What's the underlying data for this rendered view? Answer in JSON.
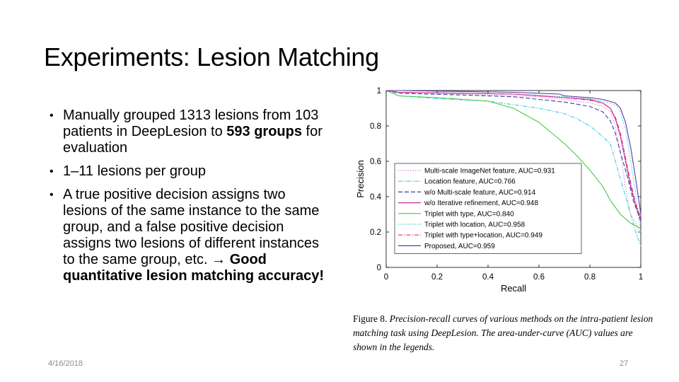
{
  "slide": {
    "title": "Experiments: Lesion Matching",
    "bullet1": {
      "text": "Manually grouped 1313 lesions from 103 patients in DeepLesion to ",
      "bold": "593 groups",
      "tail": " for evaluation"
    },
    "bullet2": {
      "text": "1–11 lesions per group"
    },
    "bullet3": {
      "text": "A true positive decision assigns two lesions of the same instance to the same group, and a false positive decision assigns two lesions of different instances to the same group, etc. →  ",
      "bold": "Good quantitative lesion matching accuracy!"
    },
    "date": "4/16/2018",
    "page_number": "27"
  },
  "caption": {
    "label": "Figure 8.",
    "text": "Precision-recall curves of various methods on the intra-patient lesion matching task using DeepLesion. The area-under-curve (AUC) values are shown in the legends."
  },
  "chart_data": {
    "type": "line",
    "xlabel": "Recall",
    "ylabel": "Precision",
    "xlim": [
      0,
      1
    ],
    "ylim": [
      0,
      1
    ],
    "xticks": [
      "0",
      "0.2",
      "0.4",
      "0.6",
      "0.8",
      "1"
    ],
    "yticks": [
      "0",
      "0.2",
      "0.4",
      "0.6",
      "0.8",
      "1"
    ],
    "grid": false,
    "legend_position": "lower-left",
    "series": [
      {
        "name": "Multi-scale ImageNet feature, AUC=0.931",
        "color": "#d96ad9",
        "dash": "dotted",
        "points": [
          [
            0,
            1
          ],
          [
            0.05,
            0.99
          ],
          [
            0.2,
            0.985
          ],
          [
            0.4,
            0.975
          ],
          [
            0.6,
            0.965
          ],
          [
            0.7,
            0.95
          ],
          [
            0.8,
            0.93
          ],
          [
            0.85,
            0.91
          ],
          [
            0.88,
            0.88
          ],
          [
            0.9,
            0.8
          ],
          [
            0.92,
            0.65
          ],
          [
            0.94,
            0.45
          ],
          [
            0.96,
            0.3
          ],
          [
            0.98,
            0.25
          ],
          [
            1,
            0.2
          ]
        ]
      },
      {
        "name": "Location feature, AUC=0.766",
        "color": "#40c8e0",
        "dash": "dashdot",
        "points": [
          [
            0,
            1
          ],
          [
            0.05,
            0.97
          ],
          [
            0.2,
            0.955
          ],
          [
            0.4,
            0.94
          ],
          [
            0.5,
            0.92
          ],
          [
            0.6,
            0.9
          ],
          [
            0.7,
            0.87
          ],
          [
            0.75,
            0.84
          ],
          [
            0.8,
            0.8
          ],
          [
            0.85,
            0.74
          ],
          [
            0.88,
            0.7
          ],
          [
            0.9,
            0.6
          ],
          [
            0.92,
            0.5
          ],
          [
            0.95,
            0.35
          ],
          [
            0.98,
            0.2
          ],
          [
            1,
            0.12
          ]
        ]
      },
      {
        "name": "w/o Multi-scale feature, AUC=0.914",
        "color": "#3c3c9e",
        "dash": "dashed",
        "points": [
          [
            0,
            1
          ],
          [
            0.05,
            0.985
          ],
          [
            0.3,
            0.975
          ],
          [
            0.5,
            0.965
          ],
          [
            0.6,
            0.95
          ],
          [
            0.7,
            0.935
          ],
          [
            0.8,
            0.91
          ],
          [
            0.85,
            0.88
          ],
          [
            0.88,
            0.83
          ],
          [
            0.9,
            0.76
          ],
          [
            0.92,
            0.65
          ],
          [
            0.95,
            0.5
          ],
          [
            0.97,
            0.38
          ],
          [
            0.99,
            0.3
          ],
          [
            1,
            0.26
          ]
        ]
      },
      {
        "name": "w/o Iterative refinement, AUC=0.948",
        "color": "#c0309a",
        "dash": "solid",
        "points": [
          [
            0,
            1
          ],
          [
            0.05,
            0.99
          ],
          [
            0.3,
            0.985
          ],
          [
            0.5,
            0.98
          ],
          [
            0.6,
            0.97
          ],
          [
            0.7,
            0.96
          ],
          [
            0.8,
            0.95
          ],
          [
            0.85,
            0.93
          ],
          [
            0.88,
            0.9
          ],
          [
            0.9,
            0.84
          ],
          [
            0.92,
            0.74
          ],
          [
            0.94,
            0.6
          ],
          [
            0.96,
            0.46
          ],
          [
            0.98,
            0.35
          ],
          [
            1,
            0.27
          ]
        ]
      },
      {
        "name": "Triplet with type, AUC=0.840",
        "color": "#44cc44",
        "dash": "solid",
        "points": [
          [
            0,
            1
          ],
          [
            0.05,
            0.97
          ],
          [
            0.2,
            0.96
          ],
          [
            0.4,
            0.94
          ],
          [
            0.5,
            0.9
          ],
          [
            0.55,
            0.86
          ],
          [
            0.6,
            0.82
          ],
          [
            0.65,
            0.76
          ],
          [
            0.7,
            0.7
          ],
          [
            0.75,
            0.63
          ],
          [
            0.8,
            0.55
          ],
          [
            0.85,
            0.46
          ],
          [
            0.88,
            0.38
          ],
          [
            0.92,
            0.3
          ],
          [
            0.96,
            0.25
          ],
          [
            1,
            0.22
          ]
        ]
      },
      {
        "name": "Triplet with location, AUC=0.958",
        "color": "#22b8d8",
        "dash": "dotted",
        "points": [
          [
            0,
            1
          ],
          [
            0.05,
            0.99
          ],
          [
            0.3,
            0.985
          ],
          [
            0.5,
            0.98
          ],
          [
            0.6,
            0.975
          ],
          [
            0.7,
            0.965
          ],
          [
            0.8,
            0.955
          ],
          [
            0.85,
            0.94
          ],
          [
            0.9,
            0.92
          ],
          [
            0.92,
            0.88
          ],
          [
            0.94,
            0.78
          ],
          [
            0.96,
            0.6
          ],
          [
            0.98,
            0.42
          ],
          [
            0.99,
            0.3
          ],
          [
            1,
            0.2
          ]
        ]
      },
      {
        "name": "Triplet with type+location, AUC=0.949",
        "color": "#e0307a",
        "dash": "dashdot",
        "points": [
          [
            0,
            1
          ],
          [
            0.05,
            0.99
          ],
          [
            0.3,
            0.985
          ],
          [
            0.5,
            0.98
          ],
          [
            0.6,
            0.97
          ],
          [
            0.7,
            0.96
          ],
          [
            0.8,
            0.945
          ],
          [
            0.85,
            0.93
          ],
          [
            0.88,
            0.9
          ],
          [
            0.9,
            0.85
          ],
          [
            0.92,
            0.76
          ],
          [
            0.94,
            0.62
          ],
          [
            0.96,
            0.48
          ],
          [
            0.98,
            0.36
          ],
          [
            1,
            0.28
          ]
        ]
      },
      {
        "name": "Proposed, AUC=0.959",
        "color": "#5a3aa0",
        "dash": "solid",
        "points": [
          [
            0,
            1
          ],
          [
            0.05,
            1
          ],
          [
            0.3,
            0.995
          ],
          [
            0.5,
            0.99
          ],
          [
            0.6,
            0.985
          ],
          [
            0.68,
            0.98
          ],
          [
            0.7,
            0.97
          ],
          [
            0.8,
            0.96
          ],
          [
            0.85,
            0.95
          ],
          [
            0.9,
            0.93
          ],
          [
            0.92,
            0.9
          ],
          [
            0.94,
            0.82
          ],
          [
            0.96,
            0.68
          ],
          [
            0.98,
            0.5
          ],
          [
            0.99,
            0.4
          ],
          [
            1,
            0.3
          ]
        ]
      }
    ]
  }
}
